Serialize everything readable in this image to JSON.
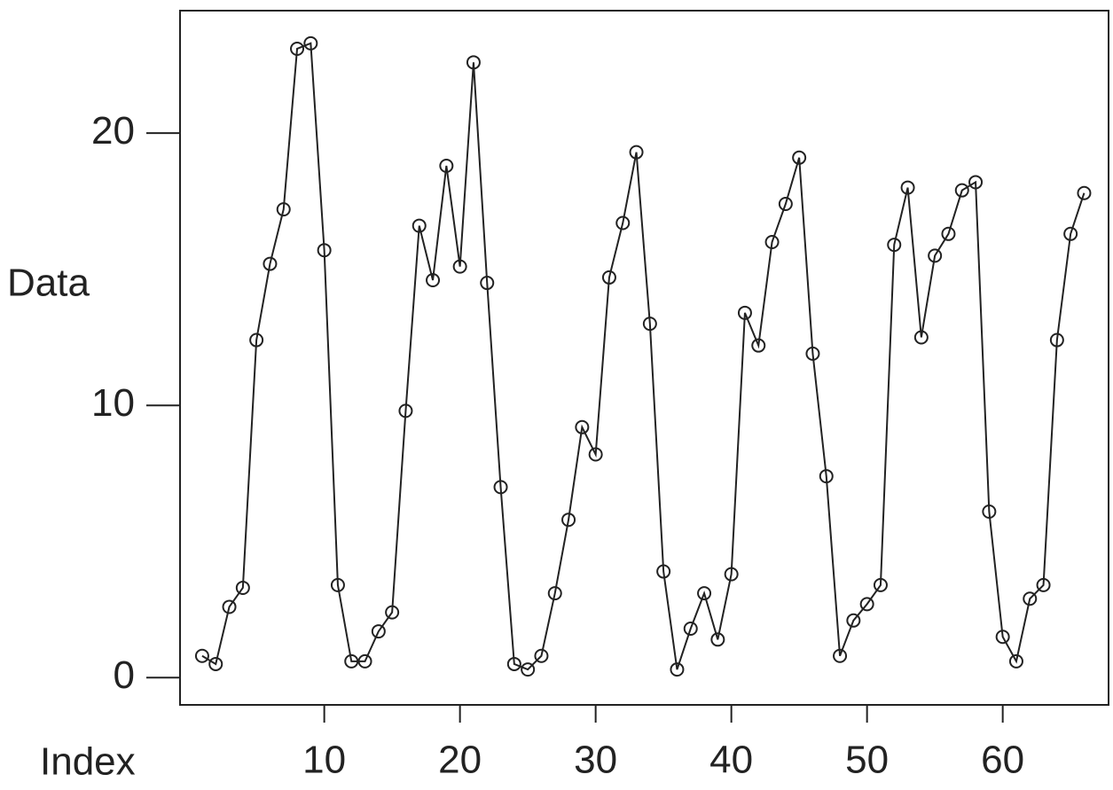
{
  "chart_data": {
    "type": "line",
    "x_label": "Index",
    "y_label": "Data",
    "x": [
      1,
      2,
      3,
      4,
      5,
      6,
      7,
      8,
      9,
      10,
      11,
      12,
      13,
      14,
      15,
      16,
      17,
      18,
      19,
      20,
      21,
      22,
      23,
      24,
      25,
      26,
      27,
      28,
      29,
      30,
      31,
      32,
      33,
      34,
      35,
      36,
      37,
      38,
      39,
      40,
      41,
      42,
      43,
      44,
      45,
      46,
      47,
      48,
      49,
      50,
      51,
      52,
      53,
      54,
      55,
      56,
      57,
      58,
      59,
      60,
      61,
      62,
      63,
      64,
      65,
      66
    ],
    "series": [
      {
        "color": "#222222",
        "values": [
          0.8,
          0.5,
          2.6,
          3.3,
          12.4,
          15.2,
          17.2,
          23.1,
          23.3,
          15.7,
          3.4,
          0.6,
          0.6,
          1.7,
          2.4,
          9.8,
          16.6,
          14.6,
          18.8,
          15.1,
          22.6,
          14.5,
          7.0,
          0.5,
          0.3,
          0.8,
          3.1,
          5.8,
          9.2,
          8.2,
          14.7,
          16.7,
          19.3,
          13.0,
          3.9,
          0.3,
          1.8,
          3.1,
          1.4,
          3.8,
          13.4,
          12.2,
          16.0,
          17.4,
          19.1,
          11.9,
          7.4,
          0.8,
          2.1,
          2.7,
          3.4,
          15.9,
          18.0,
          12.5,
          15.5,
          16.3,
          17.9,
          18.2,
          6.1,
          1.5,
          0.6,
          2.9,
          3.4,
          12.4,
          16.3,
          17.8
        ]
      }
    ],
    "xlim": [
      -0.63,
      67.8
    ],
    "ylim": [
      -1.0,
      24.5
    ],
    "xticks": [
      10,
      20,
      30,
      40,
      50,
      60
    ],
    "yticks": [
      0,
      10,
      20
    ]
  }
}
